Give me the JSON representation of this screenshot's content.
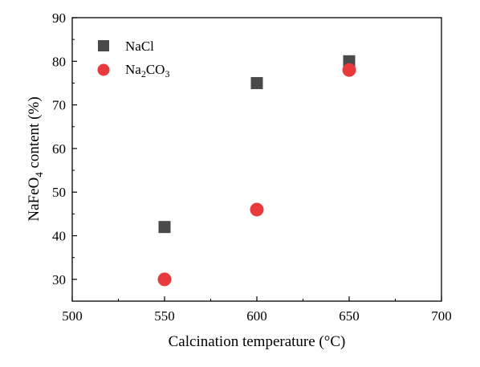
{
  "chart_data": {
    "type": "scatter",
    "xlabel": "Calcination temperature (°C)",
    "ylabel_main": "NaFeO",
    "ylabel_sub": "4",
    "ylabel_rest": " content (%)",
    "xlim": [
      500,
      700
    ],
    "ylim": [
      25,
      90
    ],
    "xticks": [
      500,
      550,
      600,
      650,
      700
    ],
    "yticks": [
      30,
      40,
      50,
      60,
      70,
      80,
      90
    ],
    "grid": false,
    "legend_position": "top-left",
    "series": [
      {
        "name": "NaCl",
        "marker": "square",
        "color": "#4a4a4a",
        "x": [
          550,
          600,
          650
        ],
        "y": [
          42,
          75,
          80
        ]
      },
      {
        "name_main": "Na",
        "name_sub1": "2",
        "name_mid": "CO",
        "name_sub2": "3",
        "marker": "circle",
        "color": "#e8393c",
        "x": [
          550,
          600,
          650
        ],
        "y": [
          30,
          46,
          78
        ]
      }
    ]
  }
}
